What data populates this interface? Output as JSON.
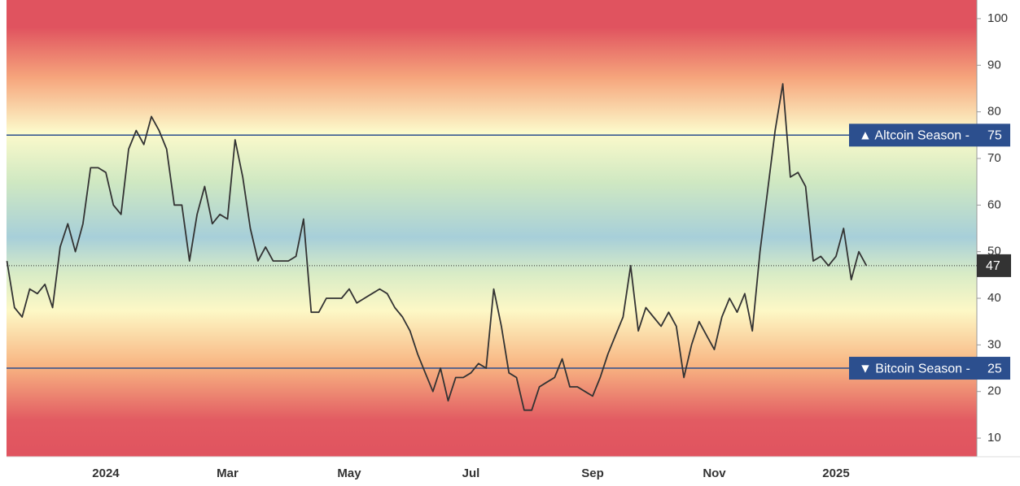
{
  "chart_data": {
    "type": "line",
    "categories": [
      null,
      null,
      null,
      null,
      null,
      null,
      null,
      null,
      null,
      null,
      null,
      null,
      null,
      "2024",
      null,
      null,
      null,
      null,
      null,
      null,
      null,
      null,
      null,
      null,
      null,
      null,
      null,
      null,
      null,
      "Mar",
      null,
      null,
      null,
      null,
      null,
      null,
      null,
      null,
      null,
      null,
      null,
      null,
      null,
      null,
      null,
      "May",
      null,
      null,
      null,
      null,
      null,
      null,
      null,
      null,
      null,
      null,
      null,
      null,
      null,
      null,
      null,
      "Jul",
      null,
      null,
      null,
      null,
      null,
      null,
      null,
      null,
      null,
      null,
      null,
      null,
      null,
      null,
      null,
      "Sep",
      null,
      null,
      null,
      null,
      null,
      null,
      null,
      null,
      null,
      null,
      null,
      null,
      null,
      null,
      null,
      "Nov",
      null,
      null,
      null,
      null,
      null,
      null,
      null,
      null,
      null,
      null,
      null,
      null,
      null,
      null,
      null,
      "2025",
      null,
      null,
      null,
      null
    ],
    "series": [
      {
        "color": "#333333",
        "values": [
          48,
          38,
          36,
          42,
          41,
          43,
          38,
          51,
          56,
          50,
          56,
          68,
          68,
          67,
          60,
          58,
          72,
          76,
          73,
          79,
          76,
          72,
          60,
          60,
          48,
          58,
          64,
          56,
          58,
          57,
          74,
          66,
          55,
          48,
          51,
          48,
          48,
          48,
          49,
          57,
          37,
          37,
          40,
          40,
          40,
          42,
          39,
          40,
          41,
          42,
          41,
          38,
          36,
          33,
          28,
          24,
          20,
          25,
          18,
          23,
          23,
          24,
          26,
          25,
          42,
          34,
          24,
          23,
          16,
          16,
          21,
          22,
          23,
          27,
          21,
          21,
          20,
          19,
          23,
          28,
          32,
          36,
          47,
          33,
          38,
          36,
          34,
          37,
          34,
          23,
          30,
          35,
          32,
          29,
          36,
          40,
          37,
          41,
          33,
          50,
          63,
          76,
          86,
          66,
          67,
          64,
          48,
          49,
          47,
          49,
          55,
          44,
          50,
          47
        ]
      }
    ],
    "thresholds": [
      {
        "label": "▲ Altcoin Season -",
        "value": 75,
        "color": "#2c4f8e"
      },
      {
        "label": "▼ Bitcoin Season -",
        "value": 25,
        "color": "#2c4f8e"
      }
    ],
    "ylim": [
      6,
      104
    ],
    "yticks": [
      10,
      20,
      30,
      40,
      50,
      60,
      70,
      80,
      90,
      100
    ],
    "grid": false
  }
}
